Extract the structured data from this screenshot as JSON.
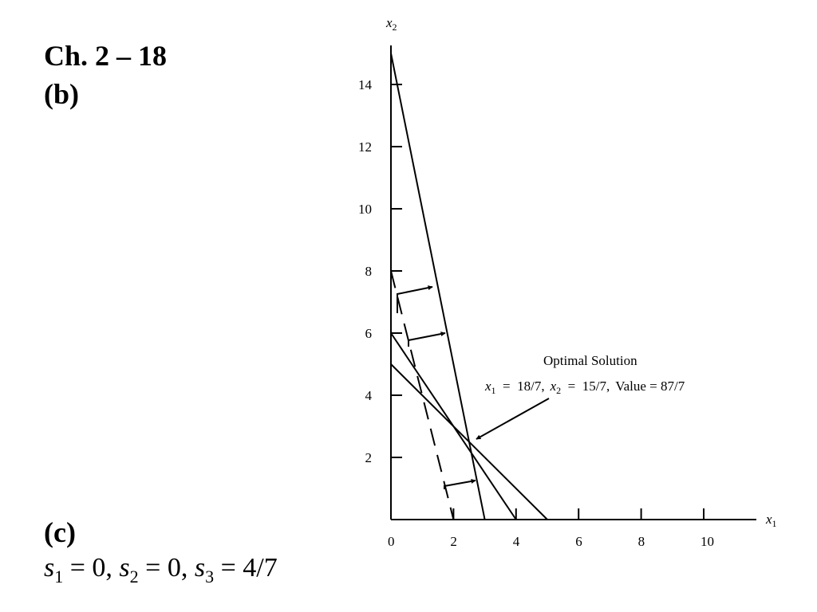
{
  "heading": {
    "title": "Ch. 2 – 18",
    "part_b": "(b)",
    "part_c": "(c)"
  },
  "slack_answer": {
    "s1": {
      "var": "s",
      "sub": "1",
      "eq": " = 0, "
    },
    "s2": {
      "var": "s",
      "sub": "2",
      "eq": " = 0, "
    },
    "s3": {
      "var": "s",
      "sub": "3",
      "eq": " = 4/7"
    }
  },
  "chart_data": {
    "type": "line",
    "xlabel": {
      "var": "x",
      "sub": "1"
    },
    "ylabel": {
      "var": "x",
      "sub": "2"
    },
    "xlim": [
      0,
      11.7
    ],
    "ylim": [
      0,
      15.2
    ],
    "x_ticks": [
      "0",
      "2",
      "4",
      "6",
      "8",
      "10"
    ],
    "y_ticks": [
      "2",
      "4",
      "6",
      "8",
      "10",
      "12",
      "14"
    ],
    "constraints": [
      {
        "from": [
          0,
          15
        ],
        "to": [
          3,
          0
        ],
        "style": "solid"
      },
      {
        "from": [
          0,
          6
        ],
        "to": [
          4,
          0
        ],
        "style": "solid"
      },
      {
        "from": [
          0,
          5
        ],
        "to": [
          5,
          0
        ],
        "style": "solid"
      },
      {
        "from": [
          0,
          8
        ],
        "to": [
          2,
          0
        ],
        "style": "dashed"
      }
    ],
    "annotation": {
      "title": "Optimal Solution",
      "x1_label": {
        "var": "x",
        "sub": "1",
        "eq": "  =  18/7,"
      },
      "x2_label": {
        "var": "x",
        "sub": "2",
        "eq": "  =  15/7,"
      },
      "value_label": "Value = 87/7",
      "point": [
        2.5714,
        2.1429
      ]
    }
  }
}
